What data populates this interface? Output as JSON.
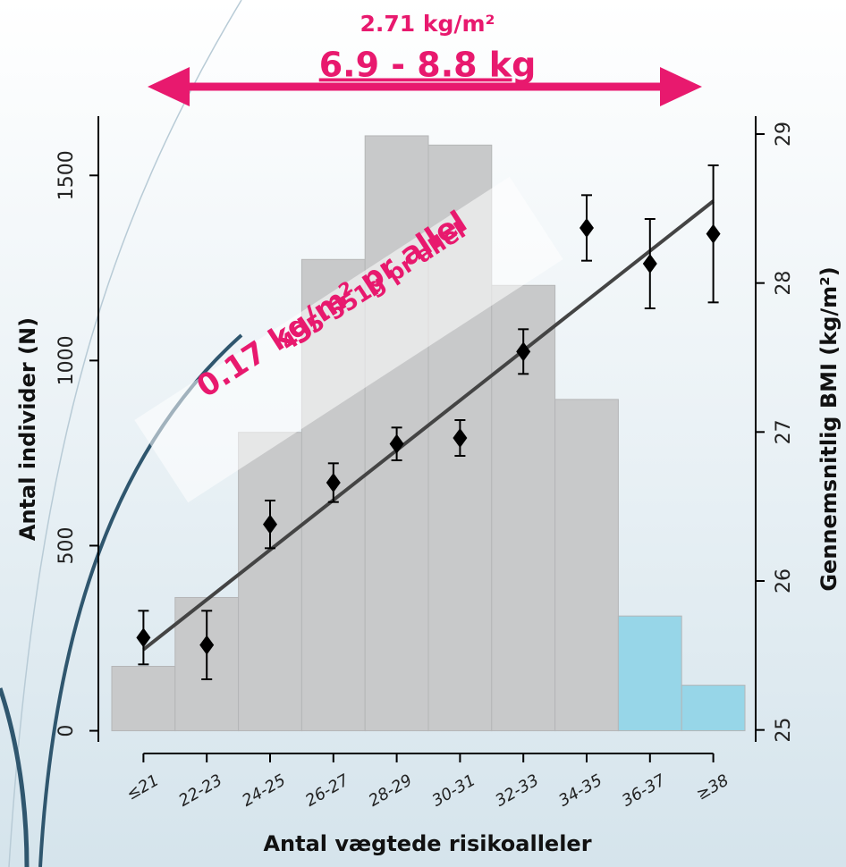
{
  "chart_data": {
    "type": "bar",
    "annotation_top": "2.71 kg/m²",
    "annotation_range": "6.9 - 8.8 kg",
    "annotation_slope": "0.17 kg/m² pr allel",
    "annotation_slope_weight": "435-551g pr allel",
    "xlabel": "Antal vægtede risikoalleler",
    "ylabel": "Antal individer (N)",
    "y2label": "Gennemsnitlig BMI (kg/m²)",
    "categories": [
      "≤21",
      "22-23",
      "24-25",
      "26-27",
      "28-29",
      "30-31",
      "32-33",
      "34-35",
      "36-37",
      "≥38"
    ],
    "values": [
      174,
      360,
      806,
      1273,
      1607,
      1582,
      1203,
      895,
      310,
      123
    ],
    "colors": [
      "#c8c9ca",
      "#c8c9ca",
      "#c8c9ca",
      "#c8c9ca",
      "#c8c9ca",
      "#c8c9ca",
      "#c8c9ca",
      "#c8c9ca",
      "#97d6e8",
      "#97d6e8"
    ],
    "bmi": {
      "axis": "y2",
      "color": "#000000",
      "values": [
        25.62,
        25.57,
        26.38,
        26.66,
        26.92,
        26.96,
        27.54,
        28.37,
        28.13,
        28.33
      ],
      "errors": [
        0.18,
        0.23,
        0.16,
        0.13,
        0.11,
        0.12,
        0.15,
        0.22,
        0.3,
        0.46
      ]
    },
    "trend_values": [
      25.54,
      28.55
    ],
    "trend_color": "#444444",
    "ylim": [
      -30,
      1660
    ],
    "yticks": [
      0,
      500,
      1000,
      1500
    ],
    "y2lim": [
      24.92,
      29.12
    ],
    "y2ticks": [
      25,
      26,
      27,
      28,
      29
    ],
    "accent_color": "#e8196e"
  }
}
